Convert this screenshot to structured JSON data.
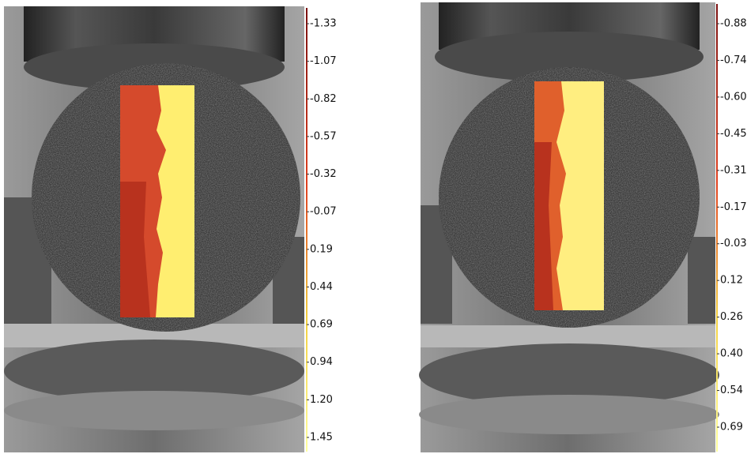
{
  "panels": [
    {
      "colorbar_labels": [
        "-1.33",
        "-1.07",
        "-0.82",
        "-0.57",
        "-0.32",
        "-0.07",
        "0.19",
        "0.44",
        "0.69",
        "0.94",
        "1.20",
        "1.45"
      ]
    },
    {
      "colorbar_labels": [
        "-0.88",
        "-0.74",
        "-0.60",
        "-0.45",
        "-0.31",
        "-0.17",
        "-0.03",
        "0.12",
        "0.26",
        "0.40",
        "0.54",
        "0.69"
      ]
    }
  ]
}
